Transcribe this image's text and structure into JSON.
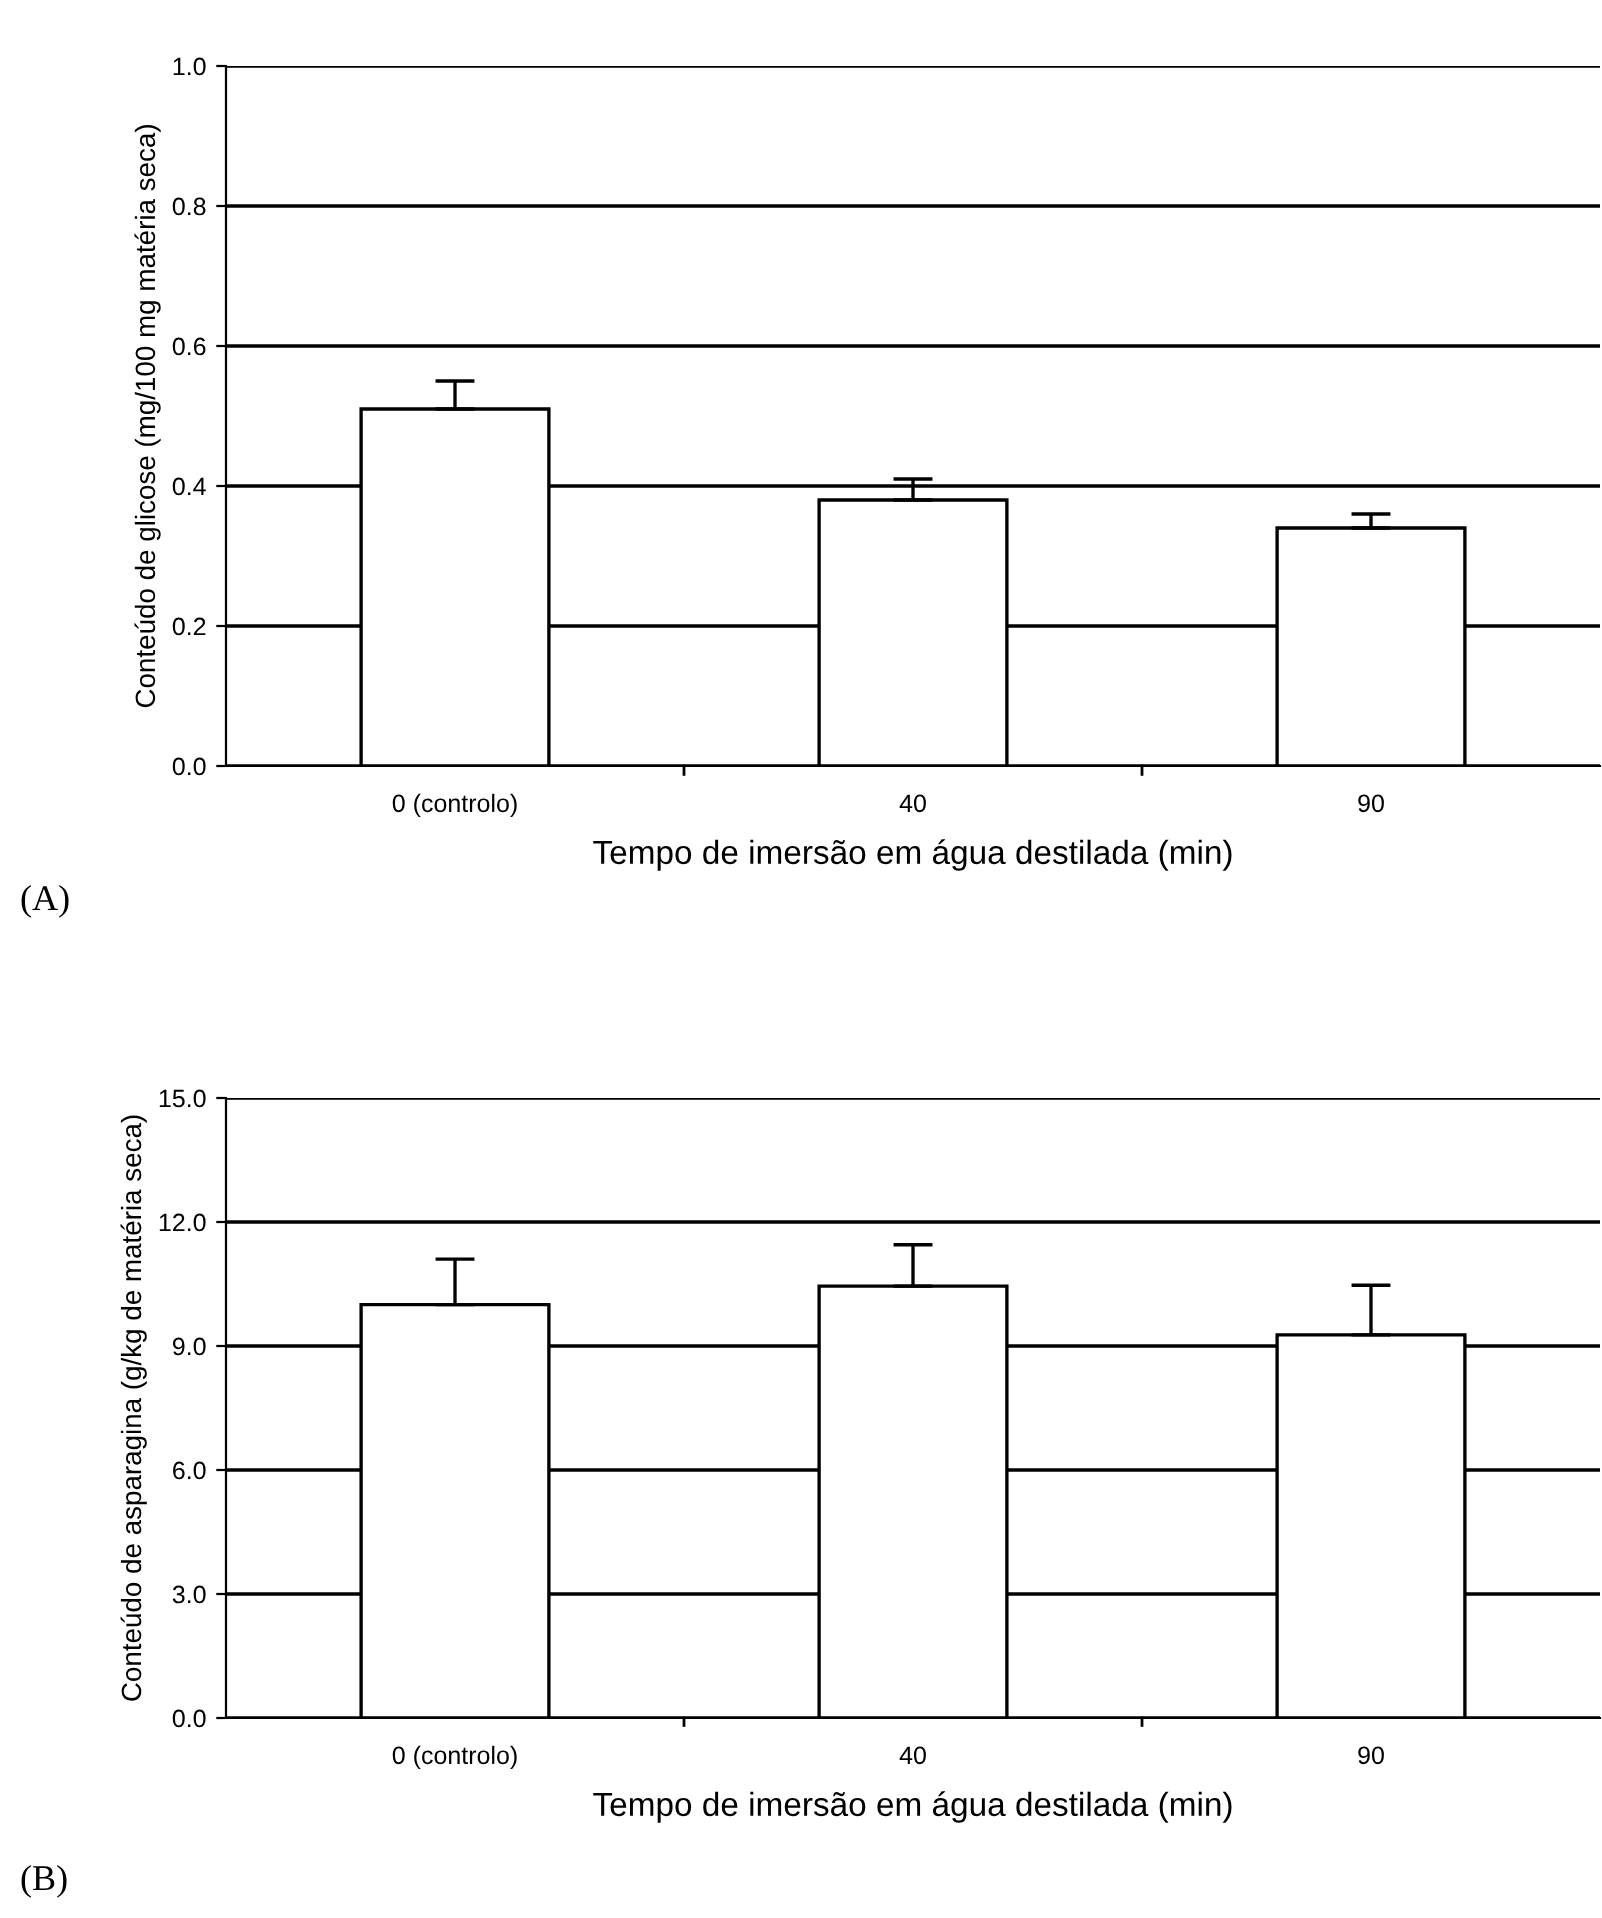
{
  "chart_data": [
    {
      "type": "bar",
      "categories": [
        "0 (controlo)",
        "40",
        "90"
      ],
      "values": [
        0.51,
        0.38,
        0.34
      ],
      "errors": [
        [
          0.51,
          0.55
        ],
        [
          0.38,
          0.41
        ],
        [
          0.34,
          0.36
        ]
      ],
      "color": "#ffffff",
      "ylim": [
        0.0,
        1.0
      ],
      "yticks": [
        {
          "value": 0.0,
          "label": "0.0"
        },
        {
          "value": 0.2,
          "label": "0.2"
        },
        {
          "value": 0.4,
          "label": "0.4"
        },
        {
          "value": 0.6,
          "label": "0.6"
        },
        {
          "value": 0.8,
          "label": "0.8"
        },
        {
          "value": 1.0,
          "label": "1.0"
        }
      ],
      "grid": "y",
      "xlabel": "Tempo de imersão em água destilada (min)",
      "ylabel": "Conteúdo de glicose (mg/100 mg matéria seca)",
      "annotations": [
        "(A)"
      ]
    },
    {
      "type": "bar",
      "categories": [
        "0 (controlo)",
        "40",
        "90"
      ],
      "values": [
        10.0,
        10.45,
        9.27
      ],
      "errors": [
        [
          10.0,
          11.1
        ],
        [
          10.45,
          11.45
        ],
        [
          9.27,
          10.47
        ]
      ],
      "color": "#ffffff",
      "ylim": [
        0.0,
        15.0
      ],
      "yticks": [
        {
          "value": 0.0,
          "label": "0.0"
        },
        {
          "value": 3.0,
          "label": "3.0"
        },
        {
          "value": 6.0,
          "label": "6.0"
        },
        {
          "value": 9.0,
          "label": "9.0"
        },
        {
          "value": 12.0,
          "label": "12.0"
        },
        {
          "value": 15.0,
          "label": "15.0"
        }
      ],
      "grid": "y",
      "xlabel": "Tempo de imersão em água destilada (min)",
      "ylabel": "Conteúdo de asparagina (g/kg de matéria seca)",
      "annotations": [
        "(B)"
      ]
    }
  ]
}
